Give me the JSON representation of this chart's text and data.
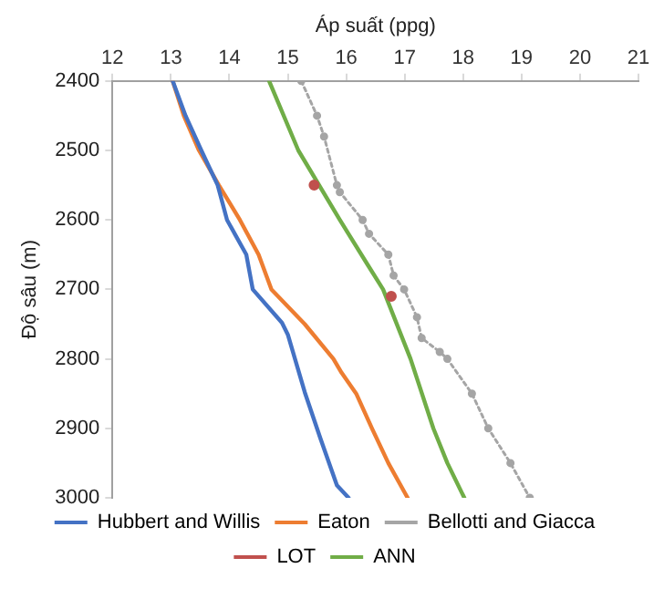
{
  "chart_data": {
    "type": "line",
    "xlabel": "Áp suất (ppg)",
    "ylabel": "Độ sâu (m)",
    "xlim": [
      12,
      21
    ],
    "xticks": [
      12,
      13,
      14,
      15,
      16,
      17,
      18,
      19,
      20,
      21
    ],
    "ylim": [
      3000,
      2400
    ],
    "yticks": [
      2400,
      2500,
      2600,
      2700,
      2800,
      2900,
      3000
    ],
    "grid": false,
    "legend": "bottom",
    "marker": "none",
    "series": [
      {
        "name": "Hubbert and Willis",
        "color": "#4472c4",
        "x": [
          13.03,
          13.25,
          13.52,
          13.8,
          13.96,
          14.29,
          14.4,
          14.9,
          15.0,
          15.29,
          15.56,
          15.84,
          16.04
        ],
        "values": [
          2400,
          2450,
          2500,
          2550,
          2600,
          2650,
          2700,
          2748,
          2765,
          2848,
          2915,
          2982,
          3000
        ]
      },
      {
        "name": "Eaton",
        "color": "#ed7d31",
        "x": [
          13.03,
          13.22,
          13.48,
          13.82,
          14.18,
          14.5,
          14.72,
          15.29,
          15.78,
          15.92,
          16.17,
          16.44,
          16.72,
          17.05
        ],
        "values": [
          2400,
          2450,
          2500,
          2550,
          2600,
          2650,
          2700,
          2750,
          2800,
          2820,
          2850,
          2900,
          2950,
          3000
        ]
      },
      {
        "name": "Bellotti and Giacca",
        "color": "#a5a5a5",
        "marker": "circle",
        "line_style": "dotted",
        "x": [
          15.23,
          15.5,
          15.62,
          15.84,
          15.89,
          16.28,
          16.39,
          16.72,
          16.81,
          16.99,
          17.21,
          17.29,
          17.6,
          17.73,
          18.15,
          18.43,
          18.81,
          19.14
        ],
        "values": [
          2400,
          2450,
          2480,
          2550,
          2560,
          2600,
          2620,
          2650,
          2680,
          2700,
          2740,
          2770,
          2790,
          2800,
          2850,
          2900,
          2950,
          3000
        ]
      },
      {
        "name": "LOT",
        "type": "scatter",
        "marker": "circle",
        "color": "#c0504d",
        "x": [
          15.45,
          16.77
        ],
        "values": [
          2550,
          2710
        ]
      },
      {
        "name": "ANN",
        "color": "#70ad47",
        "x": [
          14.68,
          15.18,
          15.89,
          16.37,
          16.63,
          17.1,
          17.49,
          17.73,
          18.02
        ],
        "values": [
          2400,
          2500,
          2600,
          2665,
          2700,
          2800,
          2900,
          2950,
          3000
        ]
      }
    ]
  }
}
